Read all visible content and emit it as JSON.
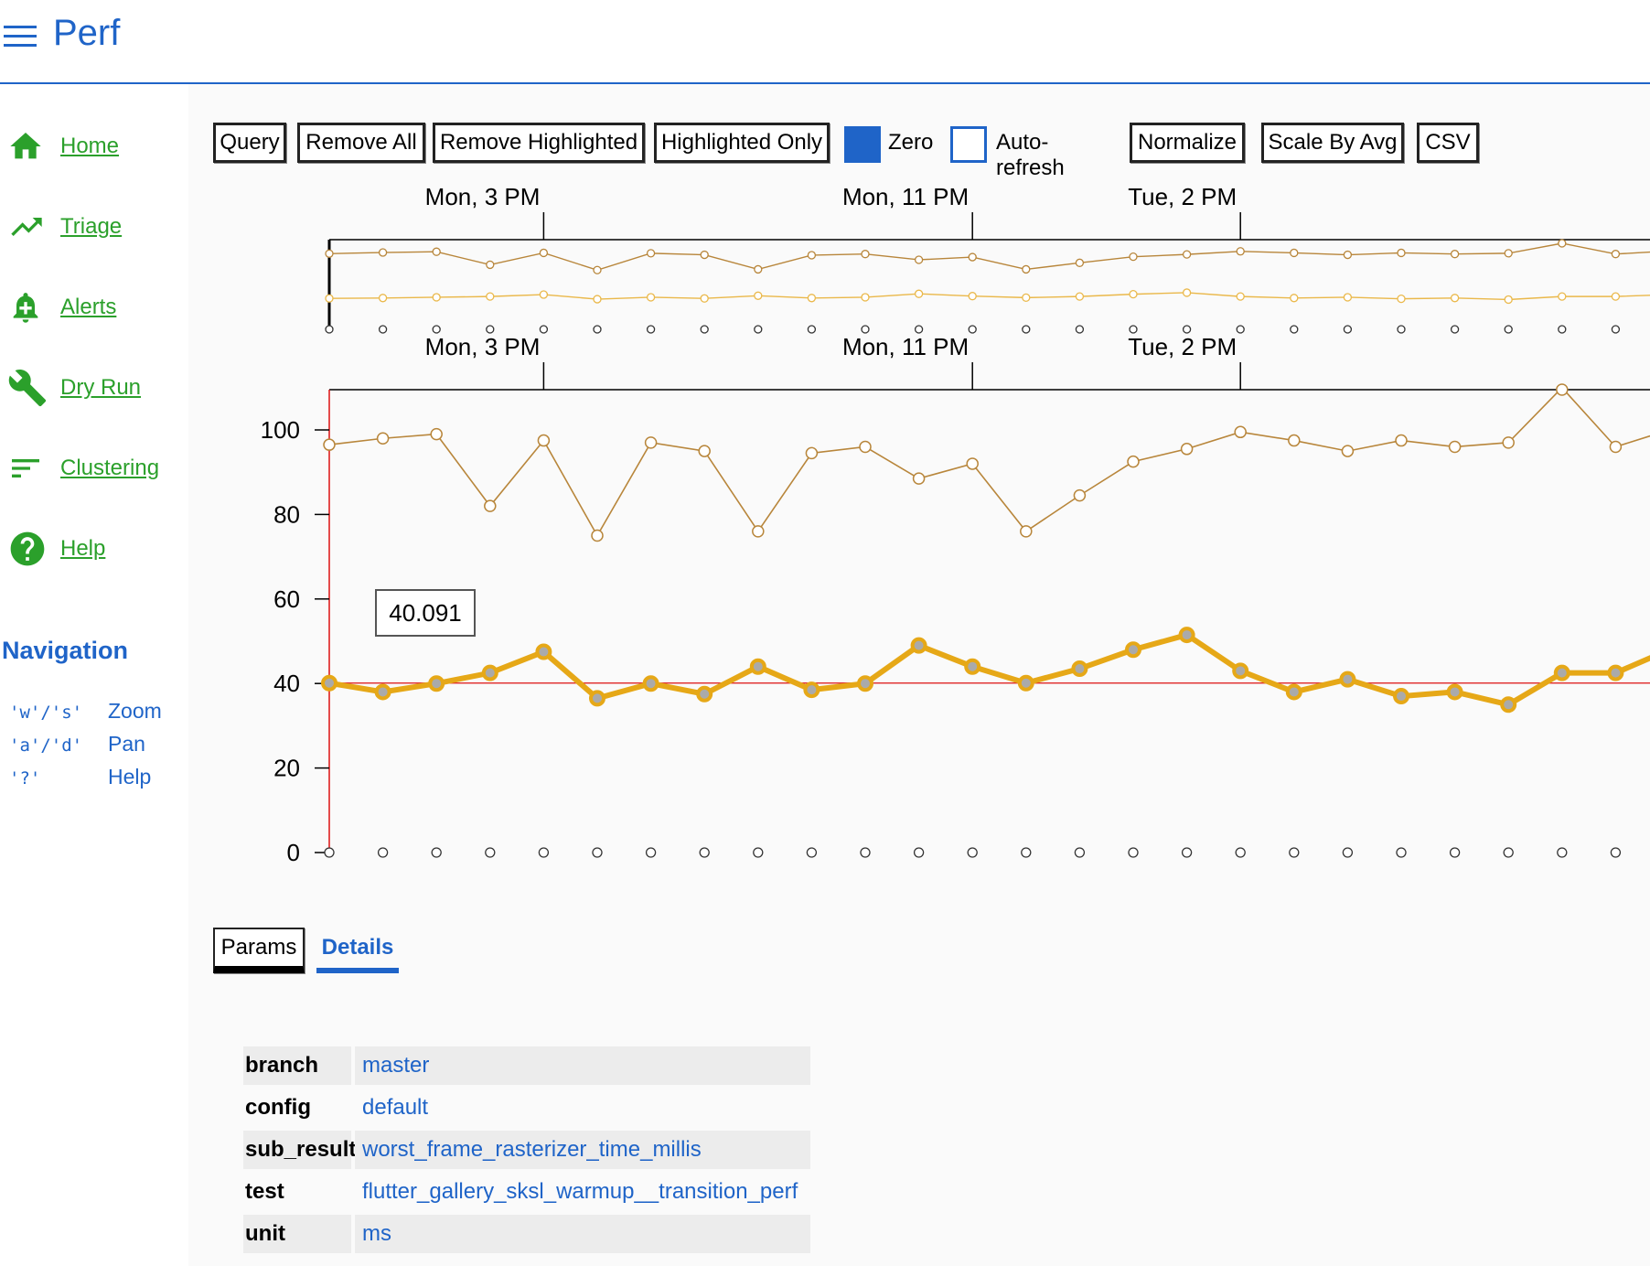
{
  "header": {
    "title": "Perf",
    "menu_icon": "hamburger-menu-icon"
  },
  "sidebar": {
    "items": [
      {
        "label": "Home",
        "icon": "home-icon"
      },
      {
        "label": "Triage",
        "icon": "trending-up-icon"
      },
      {
        "label": "Alerts",
        "icon": "bell-plus-icon"
      },
      {
        "label": "Dry Run",
        "icon": "wrench-icon"
      },
      {
        "label": "Clustering",
        "icon": "sort-lines-icon"
      },
      {
        "label": "Help",
        "icon": "help-circle-icon"
      }
    ],
    "nav_heading": "Navigation",
    "shortcuts": [
      {
        "key": "'w'/'s'",
        "action": "Zoom"
      },
      {
        "key": "'a'/'d'",
        "action": "Pan"
      },
      {
        "key": "'?'",
        "action": "Help"
      }
    ],
    "accent_color": "#2ba02b"
  },
  "toolbar": {
    "query": "Query",
    "remove_all": "Remove All",
    "remove_highlighted": "Remove Highlighted",
    "highlighted_only": "Highlighted Only",
    "zero_label": "Zero",
    "zero_checked": true,
    "auto_refresh_label": "Auto-refresh",
    "auto_refresh_checked": false,
    "normalize": "Normalize",
    "scale_by_avg": "Scale By Avg",
    "csv": "CSV"
  },
  "colors": {
    "brand": "#1f64c8",
    "series_highlight": "#e6a817",
    "series_upper": "#b8863b",
    "series_overview_lower": "#eab84a",
    "zero_line": "#d11"
  },
  "chart_data": {
    "type": "line",
    "x_tick_labels": [
      "Mon, 3 PM",
      "Mon, 11 PM",
      "Tue, 2 PM"
    ],
    "x_tick_indices": [
      4,
      12,
      17
    ],
    "ylim": [
      0,
      110
    ],
    "y_ticks": [
      0,
      20,
      40,
      60,
      80,
      100
    ],
    "tooltip_value": "40.091",
    "series": [
      {
        "values": [
          96.5,
          98,
          99,
          82,
          97.5,
          75,
          97,
          95,
          76,
          94.5,
          96,
          88.5,
          92,
          76,
          84.5,
          92.5,
          95.5,
          99.5,
          97.5,
          95,
          97.5,
          96,
          97,
          110,
          96,
          100
        ]
      },
      {
        "values": [
          40.1,
          38,
          40,
          42.5,
          47.5,
          36.5,
          40,
          37.5,
          44,
          38.5,
          40,
          49,
          44,
          40.1,
          43.5,
          48,
          51.5,
          43,
          38,
          41,
          37,
          38,
          35,
          42.5,
          42.5,
          48
        ]
      },
      {
        "values": [
          0,
          0,
          0,
          0,
          0,
          0,
          0,
          0,
          0,
          0,
          0,
          0,
          0,
          0,
          0,
          0,
          0,
          0,
          0,
          0,
          0,
          0,
          0,
          0,
          0,
          0
        ]
      }
    ],
    "overview_lower": {
      "values": [
        38,
        38.5,
        39.5,
        40.5,
        43,
        37,
        39.5,
        38,
        41.5,
        38.5,
        39.5,
        44,
        41,
        39,
        40.5,
        43.5,
        45.5,
        40.5,
        38.5,
        39.5,
        37.5,
        38.5,
        36.5,
        40.5,
        40.5,
        43
      ]
    }
  },
  "tabs": {
    "params": "Params",
    "details": "Details"
  },
  "params": [
    {
      "key": "branch",
      "value": "master"
    },
    {
      "key": "config",
      "value": "default"
    },
    {
      "key": "sub_result",
      "value": "worst_frame_rasterizer_time_millis"
    },
    {
      "key": "test",
      "value": "flutter_gallery_sksl_warmup__transition_perf"
    },
    {
      "key": "unit",
      "value": "ms"
    }
  ]
}
